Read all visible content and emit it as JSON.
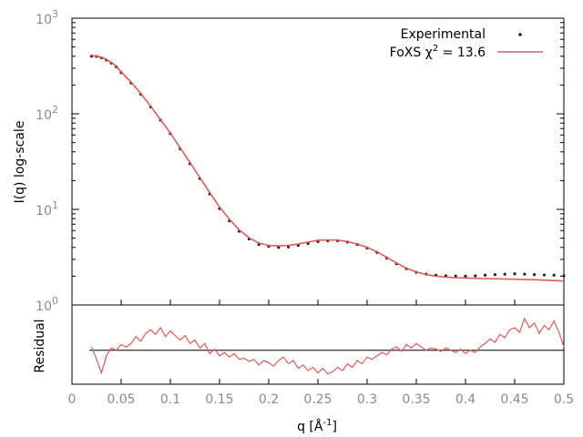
{
  "chart_data": [
    {
      "type": "scatter",
      "panel": "main",
      "ylabel": "I(q) log-scale",
      "yscale": "log",
      "xlim": [
        0,
        0.5
      ],
      "ylim": [
        1,
        1000
      ],
      "y_ticks": [
        {
          "value": 1,
          "base": "10",
          "exp": "0"
        },
        {
          "value": 10,
          "base": "10",
          "exp": "1"
        },
        {
          "value": 100,
          "base": "10",
          "exp": "2"
        },
        {
          "value": 1000,
          "base": "10",
          "exp": "3"
        }
      ],
      "legend": {
        "placement": "top-right",
        "entries": [
          {
            "label": "Experimental",
            "marker": "dot",
            "color": "#222222"
          },
          {
            "label_parts": [
              "FoXS χ",
              "2",
              " = 13.6"
            ],
            "marker": "line",
            "color": "#e05a5a"
          }
        ]
      },
      "series": [
        {
          "name": "Experimental",
          "style": "points",
          "color": "#222222",
          "x": [
            0.02,
            0.025,
            0.03,
            0.035,
            0.04,
            0.045,
            0.05,
            0.06,
            0.07,
            0.08,
            0.09,
            0.1,
            0.11,
            0.12,
            0.13,
            0.14,
            0.15,
            0.16,
            0.17,
            0.18,
            0.19,
            0.2,
            0.21,
            0.22,
            0.23,
            0.24,
            0.25,
            0.26,
            0.27,
            0.28,
            0.29,
            0.3,
            0.31,
            0.32,
            0.33,
            0.34,
            0.35,
            0.36,
            0.37,
            0.38,
            0.39,
            0.4,
            0.41,
            0.42,
            0.43,
            0.44,
            0.45,
            0.46,
            0.47,
            0.48,
            0.49,
            0.5
          ],
          "y": [
            400,
            398,
            385,
            365,
            340,
            310,
            270,
            210,
            160,
            118,
            86,
            62,
            43,
            30,
            21,
            14.5,
            10.2,
            7.6,
            5.9,
            4.9,
            4.3,
            4.1,
            4.0,
            4.05,
            4.2,
            4.4,
            4.6,
            4.7,
            4.7,
            4.55,
            4.3,
            3.95,
            3.55,
            3.1,
            2.7,
            2.4,
            2.2,
            2.1,
            2.05,
            2.02,
            2.01,
            2.0,
            2.02,
            2.05,
            2.08,
            2.1,
            2.12,
            2.1,
            2.08,
            2.06,
            2.05,
            2.02
          ]
        },
        {
          "name": "FoXS χ2 = 13.6",
          "style": "line",
          "color": "#e05a5a",
          "x": [
            0.02,
            0.025,
            0.03,
            0.035,
            0.04,
            0.045,
            0.05,
            0.06,
            0.07,
            0.08,
            0.09,
            0.1,
            0.11,
            0.12,
            0.13,
            0.14,
            0.15,
            0.16,
            0.17,
            0.18,
            0.19,
            0.2,
            0.21,
            0.22,
            0.23,
            0.24,
            0.25,
            0.26,
            0.27,
            0.28,
            0.29,
            0.3,
            0.31,
            0.32,
            0.33,
            0.34,
            0.35,
            0.36,
            0.37,
            0.38,
            0.39,
            0.4,
            0.41,
            0.42,
            0.43,
            0.44,
            0.45,
            0.46,
            0.47,
            0.48,
            0.49,
            0.5
          ],
          "y": [
            405,
            402,
            390,
            370,
            345,
            315,
            275,
            215,
            163,
            120,
            87,
            63,
            44,
            31,
            21.5,
            15,
            10.6,
            7.9,
            6.1,
            5.05,
            4.45,
            4.2,
            4.15,
            4.2,
            4.35,
            4.55,
            4.75,
            4.8,
            4.78,
            4.6,
            4.35,
            4.0,
            3.6,
            3.15,
            2.75,
            2.42,
            2.22,
            2.08,
            2.0,
            1.96,
            1.93,
            1.92,
            1.9,
            1.89,
            1.88,
            1.87,
            1.86,
            1.85,
            1.84,
            1.82,
            1.8,
            1.78
          ]
        }
      ]
    },
    {
      "type": "line",
      "panel": "residual",
      "ylabel": "Residual",
      "xlabel_parts": [
        "q [Å",
        "-1",
        "]"
      ],
      "xlim": [
        0,
        0.5
      ],
      "x_ticks": [
        "0",
        "0.05",
        "0.1",
        "0.15",
        "0.2",
        "0.25",
        "0.3",
        "0.35",
        "0.4",
        "0.45",
        "0.5"
      ],
      "ylim": [
        -3,
        4
      ],
      "reference_line": 0,
      "series": [
        {
          "style": "line",
          "color": "#e05a5a",
          "x": [
            0.02,
            0.025,
            0.03,
            0.035,
            0.04,
            0.045,
            0.05,
            0.055,
            0.06,
            0.065,
            0.07,
            0.075,
            0.08,
            0.085,
            0.09,
            0.095,
            0.1,
            0.105,
            0.11,
            0.115,
            0.12,
            0.125,
            0.13,
            0.135,
            0.14,
            0.145,
            0.15,
            0.155,
            0.16,
            0.165,
            0.17,
            0.175,
            0.18,
            0.185,
            0.19,
            0.195,
            0.2,
            0.205,
            0.21,
            0.215,
            0.22,
            0.225,
            0.23,
            0.235,
            0.24,
            0.245,
            0.25,
            0.255,
            0.26,
            0.265,
            0.27,
            0.275,
            0.28,
            0.285,
            0.29,
            0.295,
            0.3,
            0.305,
            0.31,
            0.315,
            0.32,
            0.325,
            0.33,
            0.335,
            0.34,
            0.345,
            0.35,
            0.355,
            0.36,
            0.365,
            0.37,
            0.375,
            0.38,
            0.385,
            0.39,
            0.395,
            0.4,
            0.405,
            0.41,
            0.415,
            0.42,
            0.425,
            0.43,
            0.435,
            0.44,
            0.445,
            0.45,
            0.455,
            0.46,
            0.465,
            0.47,
            0.475,
            0.48,
            0.485,
            0.49,
            0.495,
            0.5
          ],
          "y": [
            0.3,
            -0.8,
            -2.0,
            -0.5,
            0.2,
            0.0,
            0.5,
            0.3,
            0.6,
            1.2,
            0.8,
            1.5,
            1.8,
            1.4,
            2.0,
            1.2,
            1.7,
            1.3,
            0.9,
            1.3,
            0.6,
            0.9,
            0.2,
            0.6,
            -0.3,
            0.1,
            -0.5,
            -0.2,
            -0.6,
            -0.3,
            -0.8,
            -0.7,
            -1.0,
            -0.8,
            -1.3,
            -0.9,
            -1.1,
            -1.4,
            -0.9,
            -0.6,
            -1.2,
            -0.9,
            -1.6,
            -1.3,
            -1.8,
            -1.5,
            -2.0,
            -1.6,
            -2.1,
            -1.9,
            -1.5,
            -1.8,
            -1.2,
            -1.5,
            -0.9,
            -1.2,
            -0.6,
            -0.8,
            -0.5,
            -0.2,
            -0.4,
            0.1,
            0.3,
            -0.1,
            0.5,
            0.2,
            0.6,
            0.3,
            0.0,
            0.2,
            0.1,
            -0.1,
            0.2,
            0.0,
            -0.2,
            0.1,
            -0.3,
            0.0,
            -0.2,
            0.3,
            0.6,
            1.0,
            0.7,
            1.4,
            1.1,
            1.8,
            2.0,
            1.6,
            2.8,
            2.0,
            2.4,
            1.5,
            2.2,
            1.8,
            2.6,
            1.6,
            0.3
          ]
        }
      ]
    }
  ]
}
